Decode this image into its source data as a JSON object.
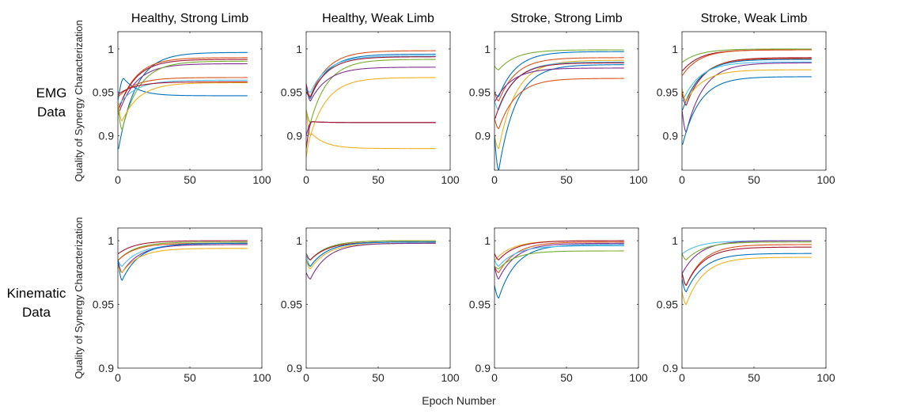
{
  "figure": {
    "row_labels": [
      [
        "EMG",
        "Data"
      ],
      [
        "Kinematic",
        "Data"
      ]
    ],
    "shared_ylabel": "Quality of Synergy Characterization",
    "shared_xlabel": "Epoch Number",
    "colors": [
      "#0072BD",
      "#D95319",
      "#EDB120",
      "#7E2F8E",
      "#77AC30",
      "#4DBEEE",
      "#A2142F"
    ]
  },
  "chart_data": [
    {
      "type": "line",
      "title": "Healthy, Strong Limb",
      "row": "EMG Data",
      "xlabel": "",
      "ylabel": "Quality of Synergy Characterization",
      "xlim": [
        0,
        100
      ],
      "ylim": [
        0.86,
        1.02
      ],
      "xticks": [
        0,
        50,
        100
      ],
      "yticks": [
        0.9,
        0.95,
        1
      ],
      "ytick_labels": [
        "0.9",
        "0.95",
        "1"
      ],
      "grid": false,
      "x_end": 90,
      "series": [
        {
          "color": "#0072BD",
          "start": 0.885,
          "dip": 0.885,
          "final": 0.996
        },
        {
          "color": "#0072BD",
          "start": 0.94,
          "peak": 0.966,
          "final": 0.946
        },
        {
          "color": "#D95319",
          "start": 0.93,
          "dip": 0.93,
          "final": 0.99
        },
        {
          "color": "#A2142F",
          "start": 0.93,
          "dip": 0.93,
          "final": 0.988
        },
        {
          "color": "#7E2F8E",
          "start": 0.925,
          "dip": 0.925,
          "final": 0.983
        },
        {
          "color": "#77AC30",
          "start": 0.935,
          "dip": 0.907,
          "final": 0.986
        },
        {
          "color": "#D95319",
          "start": 0.945,
          "dip": 0.945,
          "final": 0.967
        },
        {
          "color": "#4DBEEE",
          "start": 0.935,
          "dip": 0.935,
          "final": 0.964
        },
        {
          "color": "#A2142F",
          "start": 0.948,
          "dip": 0.948,
          "final": 0.962
        },
        {
          "color": "#EDB120",
          "start": 0.94,
          "dip": 0.917,
          "final": 0.961
        }
      ]
    },
    {
      "type": "line",
      "title": "Healthy, Weak Limb",
      "row": "EMG Data",
      "xlabel": "",
      "ylabel": "",
      "xlim": [
        0,
        100
      ],
      "ylim": [
        0.86,
        1.02
      ],
      "xticks": [
        0,
        50,
        100
      ],
      "yticks": [
        0.9,
        0.95,
        1
      ],
      "ytick_labels": [
        "0.9",
        "0.95",
        "1"
      ],
      "grid": false,
      "x_end": 90,
      "series": [
        {
          "color": "#D95319",
          "start": 0.96,
          "dip": 0.945,
          "final": 0.998
        },
        {
          "color": "#0072BD",
          "start": 0.955,
          "dip": 0.943,
          "final": 0.994
        },
        {
          "color": "#4DBEEE",
          "start": 0.955,
          "dip": 0.95,
          "final": 0.992
        },
        {
          "color": "#A2142F",
          "start": 0.95,
          "dip": 0.945,
          "final": 0.991
        },
        {
          "color": "#77AC30",
          "start": 0.93,
          "dip": 0.915,
          "final": 0.988
        },
        {
          "color": "#7E2F8E",
          "start": 0.96,
          "dip": 0.94,
          "final": 0.979
        },
        {
          "color": "#EDB120",
          "start": 0.93,
          "dip": 0.9,
          "final": 0.967
        },
        {
          "color": "#7E2F8E",
          "start": 0.9,
          "peak": 0.916,
          "final": 0.915
        },
        {
          "color": "#A2142F",
          "start": 0.885,
          "peak": 0.916,
          "final": 0.915
        },
        {
          "color": "#EDB120",
          "start": 0.875,
          "peak": 0.902,
          "final": 0.885
        }
      ]
    },
    {
      "type": "line",
      "title": "Stroke, Strong Limb",
      "row": "EMG Data",
      "xlabel": "",
      "ylabel": "",
      "xlim": [
        0,
        100
      ],
      "ylim": [
        0.86,
        1.02
      ],
      "xticks": [
        0,
        50,
        100
      ],
      "yticks": [
        0.9,
        0.95,
        1
      ],
      "ytick_labels": [
        "0.9",
        "0.95",
        "1"
      ],
      "grid": false,
      "x_end": 90,
      "series": [
        {
          "color": "#77AC30",
          "start": 0.98,
          "dip": 0.976,
          "final": 0.999
        },
        {
          "color": "#0072BD",
          "start": 0.95,
          "dip": 0.945,
          "final": 0.997
        },
        {
          "color": "#D95319",
          "start": 0.95,
          "dip": 0.94,
          "final": 0.99
        },
        {
          "color": "#EDB120",
          "start": 0.9,
          "dip": 0.885,
          "final": 0.987
        },
        {
          "color": "#4DBEEE",
          "start": 0.94,
          "dip": 0.93,
          "final": 0.985
        },
        {
          "color": "#A2142F",
          "start": 0.92,
          "dip": 0.92,
          "final": 0.984
        },
        {
          "color": "#0072BD",
          "start": 0.9,
          "dip": 0.86,
          "final": 0.982
        },
        {
          "color": "#7E2F8E",
          "start": 0.94,
          "dip": 0.94,
          "final": 0.978
        },
        {
          "color": "#D95319",
          "start": 0.92,
          "dip": 0.908,
          "final": 0.966
        }
      ]
    },
    {
      "type": "line",
      "title": "Stroke, Weak Limb",
      "row": "EMG Data",
      "xlabel": "",
      "ylabel": "",
      "xlim": [
        0,
        100
      ],
      "ylim": [
        0.86,
        1.02
      ],
      "xticks": [
        0,
        50,
        100
      ],
      "yticks": [
        0.9,
        0.95,
        1
      ],
      "ytick_labels": [
        "0.9",
        "0.95",
        "1"
      ],
      "grid": false,
      "x_end": 90,
      "series": [
        {
          "color": "#77AC30",
          "start": 0.985,
          "dip": 0.985,
          "final": 1.0
        },
        {
          "color": "#A2142F",
          "start": 0.975,
          "dip": 0.975,
          "final": 0.999
        },
        {
          "color": "#D95319",
          "start": 0.97,
          "dip": 0.97,
          "final": 0.999
        },
        {
          "color": "#A2142F",
          "start": 0.95,
          "dip": 0.935,
          "final": 0.99
        },
        {
          "color": "#D95319",
          "start": 0.95,
          "dip": 0.94,
          "final": 0.989
        },
        {
          "color": "#0072BD",
          "start": 0.93,
          "dip": 0.93,
          "final": 0.988
        },
        {
          "color": "#4DBEEE",
          "start": 0.94,
          "dip": 0.94,
          "final": 0.985
        },
        {
          "color": "#7E2F8E",
          "start": 0.93,
          "dip": 0.904,
          "final": 0.984
        },
        {
          "color": "#EDB120",
          "start": 0.955,
          "dip": 0.94,
          "final": 0.976
        },
        {
          "color": "#0072BD",
          "start": 0.89,
          "dip": 0.89,
          "final": 0.968
        }
      ]
    },
    {
      "type": "line",
      "title": "",
      "row": "Kinematic Data",
      "xlabel": "",
      "ylabel": "Quality of Synergy Characterization",
      "xlim": [
        0,
        100
      ],
      "ylim": [
        0.9,
        1.01
      ],
      "xticks": [
        0,
        50,
        100
      ],
      "yticks": [
        0.9,
        0.95,
        1
      ],
      "ytick_labels": [
        "0.9",
        "0.95",
        "1"
      ],
      "grid": false,
      "x_end": 90,
      "series": [
        {
          "color": "#A2142F",
          "start": 0.99,
          "dip": 0.99,
          "final": 1.0
        },
        {
          "color": "#77AC30",
          "start": 0.985,
          "dip": 0.985,
          "final": 0.999
        },
        {
          "color": "#D95319",
          "start": 0.985,
          "dip": 0.985,
          "final": 0.998
        },
        {
          "color": "#4DBEEE",
          "start": 0.985,
          "dip": 0.98,
          "final": 0.997
        },
        {
          "color": "#7E2F8E",
          "start": 0.985,
          "dip": 0.975,
          "final": 0.997
        },
        {
          "color": "#0072BD",
          "start": 0.985,
          "dip": 0.969,
          "final": 0.998
        },
        {
          "color": "#EDB120",
          "start": 0.98,
          "dip": 0.975,
          "final": 0.994
        }
      ]
    },
    {
      "type": "line",
      "title": "",
      "row": "Kinematic Data",
      "xlabel": "",
      "ylabel": "",
      "xlim": [
        0,
        100
      ],
      "ylim": [
        0.9,
        1.01
      ],
      "xticks": [
        0,
        50,
        100
      ],
      "yticks": [
        0.9,
        0.95,
        1
      ],
      "ytick_labels": [
        "0.9",
        "0.95",
        "1"
      ],
      "grid": false,
      "x_end": 90,
      "series": [
        {
          "color": "#D95319",
          "start": 0.99,
          "dip": 0.985,
          "final": 1.0
        },
        {
          "color": "#77AC30",
          "start": 0.99,
          "dip": 0.985,
          "final": 1.0
        },
        {
          "color": "#A2142F",
          "start": 0.99,
          "dip": 0.985,
          "final": 0.999
        },
        {
          "color": "#4DBEEE",
          "start": 0.99,
          "dip": 0.98,
          "final": 0.999
        },
        {
          "color": "#0072BD",
          "start": 0.985,
          "dip": 0.98,
          "final": 0.999
        },
        {
          "color": "#EDB120",
          "start": 0.985,
          "dip": 0.978,
          "final": 0.998
        },
        {
          "color": "#7E2F8E",
          "start": 0.975,
          "dip": 0.97,
          "final": 0.998
        }
      ]
    },
    {
      "type": "line",
      "title": "",
      "row": "Kinematic Data",
      "xlabel": "Epoch Number",
      "ylabel": "",
      "xlim": [
        0,
        100
      ],
      "ylim": [
        0.9,
        1.01
      ],
      "xticks": [
        0,
        50,
        100
      ],
      "yticks": [
        0.9,
        0.95,
        1
      ],
      "ytick_labels": [
        "0.9",
        "0.95",
        "1"
      ],
      "grid": false,
      "x_end": 90,
      "series": [
        {
          "color": "#EDB120",
          "start": 0.985,
          "dip": 0.985,
          "final": 1.0
        },
        {
          "color": "#A2142F",
          "start": 0.99,
          "dip": 0.985,
          "final": 1.0
        },
        {
          "color": "#D95319",
          "start": 0.98,
          "dip": 0.975,
          "final": 0.999
        },
        {
          "color": "#7E2F8E",
          "start": 0.98,
          "dip": 0.97,
          "final": 0.998
        },
        {
          "color": "#0072BD",
          "start": 0.965,
          "dip": 0.955,
          "final": 0.997
        },
        {
          "color": "#4DBEEE",
          "start": 0.985,
          "dip": 0.98,
          "final": 0.996
        },
        {
          "color": "#77AC30",
          "start": 0.98,
          "dip": 0.978,
          "final": 0.992
        }
      ]
    },
    {
      "type": "line",
      "title": "",
      "row": "Kinematic Data",
      "xlabel": "",
      "ylabel": "",
      "xlim": [
        0,
        100
      ],
      "ylim": [
        0.9,
        1.01
      ],
      "xticks": [
        0,
        50,
        100
      ],
      "yticks": [
        0.9,
        0.95,
        1
      ],
      "ytick_labels": [
        "0.9",
        "0.95",
        "1"
      ],
      "grid": false,
      "x_end": 90,
      "series": [
        {
          "color": "#4DBEEE",
          "start": 0.99,
          "dip": 0.99,
          "final": 1.0
        },
        {
          "color": "#7E2F8E",
          "start": 0.975,
          "dip": 0.975,
          "final": 1.0
        },
        {
          "color": "#77AC30",
          "start": 0.99,
          "dip": 0.985,
          "final": 0.999
        },
        {
          "color": "#D95319",
          "start": 0.975,
          "dip": 0.965,
          "final": 0.997
        },
        {
          "color": "#A2142F",
          "start": 0.975,
          "dip": 0.965,
          "final": 0.995
        },
        {
          "color": "#0072BD",
          "start": 0.97,
          "dip": 0.96,
          "final": 0.99
        },
        {
          "color": "#EDB120",
          "start": 0.96,
          "dip": 0.95,
          "final": 0.987
        }
      ]
    }
  ]
}
